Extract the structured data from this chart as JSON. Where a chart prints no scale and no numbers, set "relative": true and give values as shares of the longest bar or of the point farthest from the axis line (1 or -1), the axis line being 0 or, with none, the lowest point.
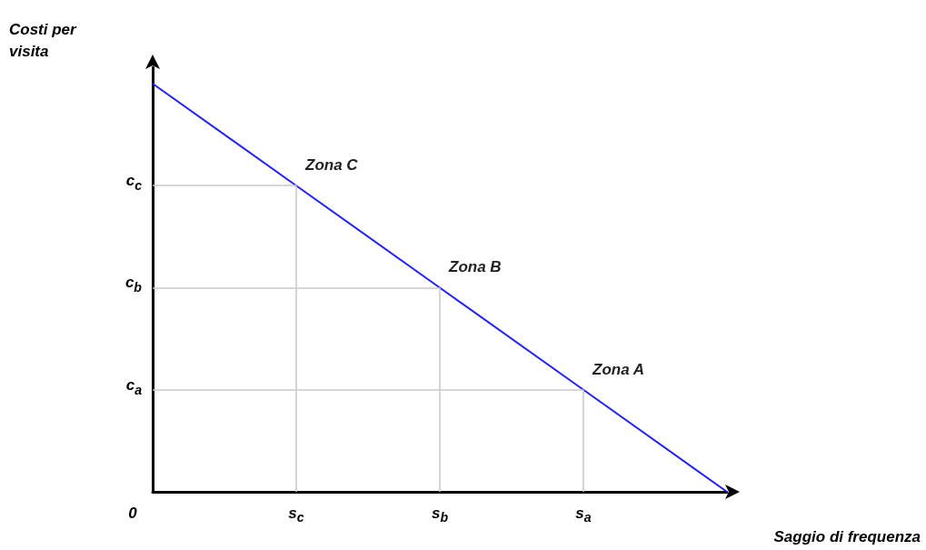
{
  "chart_data": {
    "type": "line",
    "relative": true,
    "xlabel": "Saggio di frequenza",
    "ylabel": "Costi per visita",
    "categories": [
      "0",
      "s$_{c}$",
      "s$_{b}$",
      "s$_{a}$",
      null
    ],
    "series": [
      {
        "color": "#1f1fff",
        "values": [
          1,
          0.75,
          0.5,
          0.25,
          0
        ]
      }
    ],
    "ref_lines": [
      {
        "axis": "y",
        "value": 0.75,
        "label": "c$_{c}$",
        "color": "#c8c8c8"
      },
      {
        "axis": "y",
        "value": 0.5,
        "label": "c$_{b}$",
        "color": "#c8c8c8"
      },
      {
        "axis": "y",
        "value": 0.25,
        "label": "c$_{a}$",
        "color": "#c8c8c8"
      },
      {
        "axis": "x",
        "value": "s$_{c}$",
        "color": "#c8c8c8"
      },
      {
        "axis": "x",
        "value": "s$_{b}$",
        "color": "#c8c8c8"
      },
      {
        "axis": "x",
        "value": "s$_{a}$",
        "color": "#c8c8c8"
      }
    ],
    "annotations": [
      "Zona C",
      "Zona B",
      "Zona A"
    ],
    "grid": false,
    "marker": "none",
    "line_style": "solid"
  }
}
